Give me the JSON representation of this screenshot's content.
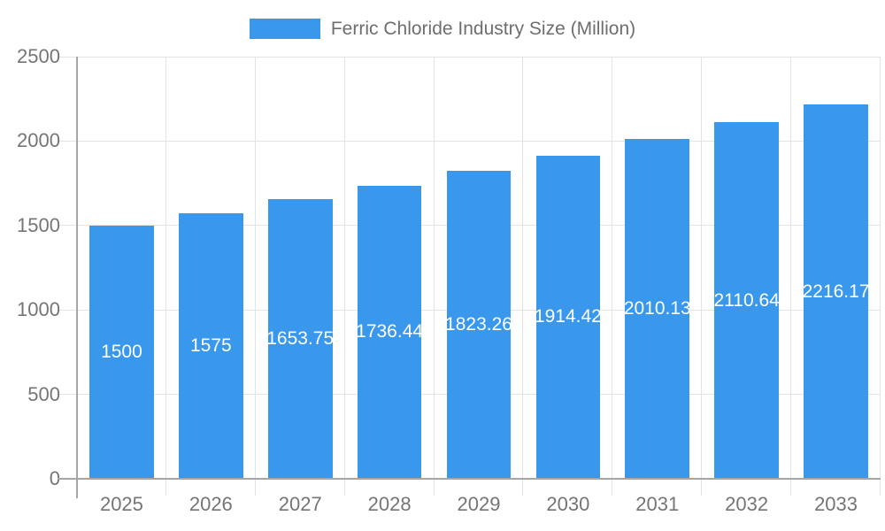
{
  "legend": {
    "label": "Ferric Chloride Industry Size (Million)"
  },
  "chart_data": {
    "type": "bar",
    "title": "Ferric Chloride Industry Size (Million)",
    "categories": [
      "2025",
      "2026",
      "2027",
      "2028",
      "2029",
      "2030",
      "2031",
      "2032",
      "2033"
    ],
    "series": [
      {
        "name": "Ferric Chloride Industry Size (Million)",
        "values": [
          1500,
          1575,
          1653.75,
          1736.44,
          1823.26,
          1914.42,
          2010.13,
          2110.64,
          2216.17
        ]
      }
    ],
    "value_labels": [
      "1500",
      "1575",
      "1653.75",
      "1736.44",
      "1823.26",
      "1914.42",
      "2010.13",
      "2110.64",
      "2216.17"
    ],
    "xlabel": "",
    "ylabel": "",
    "ylim": [
      0,
      2500
    ],
    "yticks": [
      0,
      500,
      1000,
      1500,
      2000,
      2500
    ],
    "ytick_labels": [
      "0",
      "500",
      "1000",
      "1500",
      "2000",
      "2500"
    ],
    "grid": true,
    "legend_position": "top-center",
    "bar_width_ratio": 0.72,
    "colors": {
      "bar": "#3998ec",
      "value_label": "#ffffff",
      "grid": "#e3e3e3",
      "axis": "#a6a6a6",
      "tick_text": "#757575",
      "legend_text": "#6e6e6e"
    }
  }
}
